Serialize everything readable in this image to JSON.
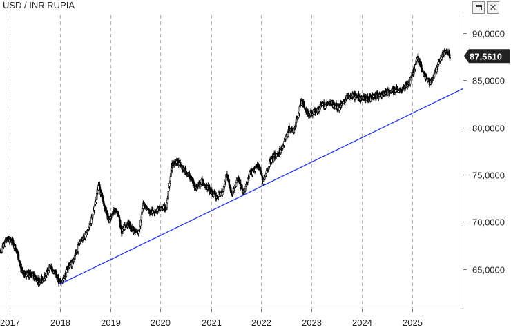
{
  "header": {
    "title": "USD / INR RUPIA",
    "maximize_icon": "window-maximize-icon",
    "close_icon": "close-icon",
    "close_glyph": "✕"
  },
  "chart_data": {
    "type": "candlestick",
    "title": "USD / INR RUPIA",
    "xlabel": "",
    "ylabel": "",
    "x_ticks": [
      "2017",
      "2018",
      "2019",
      "2020",
      "2021",
      "2022",
      "2023",
      "2024",
      "2025"
    ],
    "y_ticks": [
      "65,0000",
      "70,0000",
      "75,0000",
      "80,0000",
      "85,0000",
      "90,0000"
    ],
    "y_tick_values": [
      65,
      70,
      75,
      80,
      85,
      90
    ],
    "ylim": [
      60.8,
      91.9
    ],
    "xlim": [
      "2016-10-24",
      "2025-12-31"
    ],
    "grid": "vertical dashed",
    "last_value_label": "87,5610",
    "last_value": 87.561,
    "colors": {
      "candles": "#000000",
      "trendline": "#2a3be8",
      "last_value_badge": "#222222"
    },
    "price_path": [
      [
        "2016-10-24",
        66.8
      ],
      [
        "2016-12-15",
        68.2
      ],
      [
        "2017-01-20",
        68.0
      ],
      [
        "2017-02-25",
        66.7
      ],
      [
        "2017-04-05",
        64.5
      ],
      [
        "2017-05-15",
        64.4
      ],
      [
        "2017-06-20",
        64.4
      ],
      [
        "2017-08-05",
        63.6
      ],
      [
        "2017-09-15",
        64.2
      ],
      [
        "2017-10-20",
        65.2
      ],
      [
        "2017-11-25",
        64.6
      ],
      [
        "2018-01-03",
        63.5
      ],
      [
        "2018-01-25",
        63.8
      ],
      [
        "2018-03-01",
        65.2
      ],
      [
        "2018-04-15",
        66.0
      ],
      [
        "2018-05-25",
        67.9
      ],
      [
        "2018-07-20",
        68.9
      ],
      [
        "2018-08-25",
        70.5
      ],
      [
        "2018-10-10",
        74.0
      ],
      [
        "2018-11-15",
        72.0
      ],
      [
        "2018-12-25",
        69.9
      ],
      [
        "2019-01-25",
        71.2
      ],
      [
        "2019-02-25",
        71.1
      ],
      [
        "2019-03-25",
        69.0
      ],
      [
        "2019-05-10",
        69.9
      ],
      [
        "2019-06-25",
        69.0
      ],
      [
        "2019-07-25",
        68.8
      ],
      [
        "2019-09-01",
        72.0
      ],
      [
        "2019-10-15",
        71.0
      ],
      [
        "2019-12-15",
        71.3
      ],
      [
        "2020-02-15",
        71.6
      ],
      [
        "2020-03-25",
        76.0
      ],
      [
        "2020-04-25",
        76.5
      ],
      [
        "2020-06-15",
        75.6
      ],
      [
        "2020-08-01",
        74.8
      ],
      [
        "2020-09-15",
        73.6
      ],
      [
        "2020-11-01",
        74.3
      ],
      [
        "2020-12-25",
        73.3
      ],
      [
        "2021-02-10",
        72.7
      ],
      [
        "2021-03-25",
        73.0
      ],
      [
        "2021-04-25",
        75.2
      ],
      [
        "2021-06-01",
        72.8
      ],
      [
        "2021-07-15",
        74.6
      ],
      [
        "2021-08-25",
        73.0
      ],
      [
        "2021-10-15",
        75.3
      ],
      [
        "2021-12-15",
        76.0
      ],
      [
        "2022-01-15",
        74.2
      ],
      [
        "2022-03-10",
        76.5
      ],
      [
        "2022-05-25",
        77.6
      ],
      [
        "2022-07-20",
        79.8
      ],
      [
        "2022-08-25",
        79.6
      ],
      [
        "2022-10-20",
        82.8
      ],
      [
        "2022-12-05",
        81.4
      ],
      [
        "2023-01-25",
        81.7
      ],
      [
        "2023-03-10",
        82.3
      ],
      [
        "2023-05-25",
        82.6
      ],
      [
        "2023-07-15",
        82.1
      ],
      [
        "2023-09-15",
        83.2
      ],
      [
        "2023-11-15",
        83.3
      ],
      [
        "2024-01-15",
        83.1
      ],
      [
        "2024-03-15",
        83.2
      ],
      [
        "2024-05-20",
        83.5
      ],
      [
        "2024-08-15",
        83.9
      ],
      [
        "2024-10-25",
        84.1
      ],
      [
        "2024-12-15",
        84.9
      ],
      [
        "2025-02-10",
        87.5
      ],
      [
        "2025-03-20",
        85.8
      ],
      [
        "2025-05-10",
        84.6
      ],
      [
        "2025-06-15",
        85.9
      ],
      [
        "2025-08-05",
        87.6
      ],
      [
        "2025-09-05",
        88.2
      ],
      [
        "2025-10-01",
        87.56
      ]
    ],
    "trendline": {
      "start": [
        "2018-01-03",
        63.4
      ],
      "end": [
        "2025-12-31",
        84.1
      ]
    }
  }
}
